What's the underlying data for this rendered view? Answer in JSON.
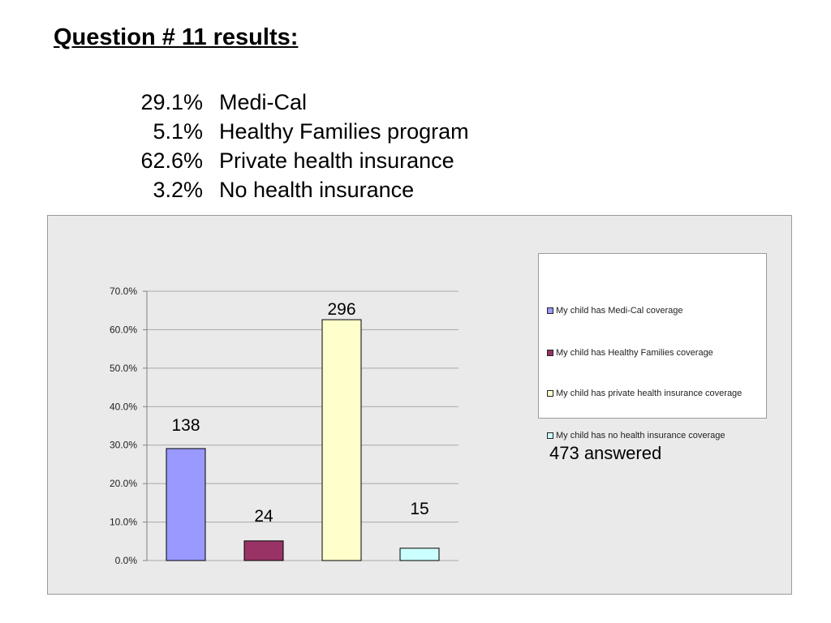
{
  "title": "Question # 11 results:",
  "summary": [
    {
      "pct": "29.1%",
      "label": "Medi-Cal"
    },
    {
      "pct": "5.1%",
      "label": "Healthy Families program"
    },
    {
      "pct": "62.6%",
      "label": "Private health insurance"
    },
    {
      "pct": "3.2%",
      "label": "No health insurance"
    }
  ],
  "chart_data": {
    "type": "bar",
    "categories": [
      "My child has Medi-Cal coverage",
      "My child has Healthy Families coverage",
      "My child has private health insurance coverage",
      "My child has no health insurance coverage"
    ],
    "values": [
      29.1,
      5.1,
      62.6,
      3.2
    ],
    "data_labels": [
      "138",
      "24",
      "296",
      "15"
    ],
    "colors": [
      "#9999ff",
      "#993366",
      "#ffffcc",
      "#ccffff"
    ],
    "ylim": [
      0,
      70
    ],
    "yticks": [
      "0.0%",
      "10.0%",
      "20.0%",
      "30.0%",
      "40.0%",
      "50.0%",
      "60.0%",
      "70.0%"
    ],
    "grid": true,
    "legend_position": "right",
    "title": "",
    "xlabel": "",
    "ylabel": ""
  },
  "answered": "473 answered"
}
